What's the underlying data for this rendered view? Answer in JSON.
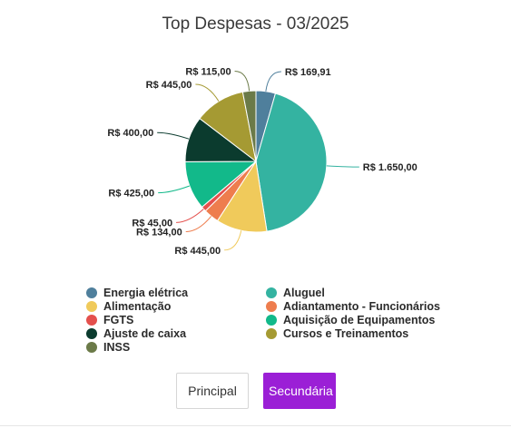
{
  "chart_data": {
    "type": "pie",
    "title": "Top Despesas - 03/2025",
    "slices": [
      {
        "name": "Energia elétrica",
        "value": 169.91,
        "label": "R$ 169,91",
        "color": "#4f7f9c"
      },
      {
        "name": "Aluguel",
        "value": 1650.0,
        "label": "R$ 1.650,00",
        "color": "#34b3a1"
      },
      {
        "name": "Alimentação",
        "value": 445.0,
        "label": "R$ 445,00",
        "color": "#f0ca5b"
      },
      {
        "name": "Adiantamento - Funcionários",
        "value": 134.0,
        "label": "R$ 134,00",
        "color": "#ee7d4e"
      },
      {
        "name": "FGTS",
        "value": 45.0,
        "label": "R$ 45,00",
        "color": "#e4504d"
      },
      {
        "name": "Aquisição de Equipamentos",
        "value": 425.0,
        "label": "R$ 425,00",
        "color": "#12b98a"
      },
      {
        "name": "Ajuste de caixa",
        "value": 400.0,
        "label": "R$ 400,00",
        "color": "#0b3b2e"
      },
      {
        "name": "Cursos e Treinamentos",
        "value": 445.0,
        "label": "R$ 445,00",
        "color": "#a59a33"
      },
      {
        "name": "INSS",
        "value": 115.0,
        "label": "R$ 115,00",
        "color": "#6b7a48"
      }
    ],
    "legend": "bottom"
  },
  "buttons": {
    "primary_label": "Principal",
    "secondary_label": "Secundária"
  }
}
